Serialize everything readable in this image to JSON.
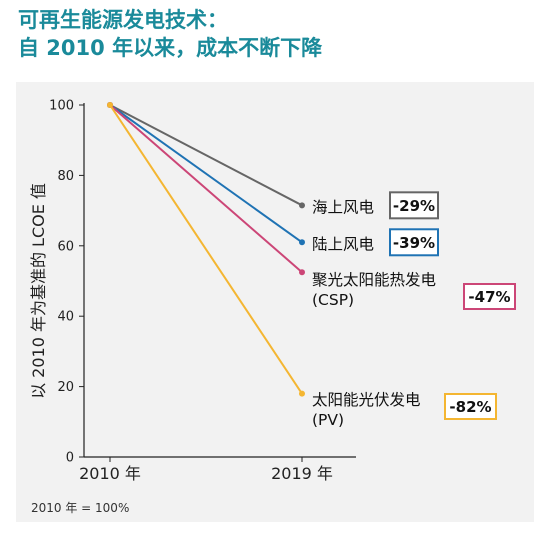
{
  "header": {
    "title_line1": "可再生能源发电技术：",
    "title_line2": "自 2010 年以来，成本不断下降"
  },
  "footnote": "2010 年 = 100%",
  "colors": {
    "title": "#1a8a9a",
    "panel_bg": "#f2f2f2"
  },
  "chart_data": {
    "type": "line",
    "title": "",
    "ylabel": "以 2010 年为基准的 LCOE 值",
    "xlabel": "",
    "categories": [
      "2010 年",
      "2019 年"
    ],
    "ylim": [
      0,
      100
    ],
    "yticks": [
      0,
      20,
      40,
      60,
      80,
      100
    ],
    "grid": false,
    "series": [
      {
        "name": "海上风电",
        "values": [
          100,
          71.5
        ],
        "change": "-29%",
        "color": "#666666"
      },
      {
        "name": "陆上风电",
        "values": [
          100,
          61
        ],
        "change": "-39%",
        "color": "#1f73b4"
      },
      {
        "name": "聚光太阳能热发电",
        "name_line2": "(CSP)",
        "values": [
          100,
          52.5
        ],
        "change": "-47%",
        "color": "#cc4677"
      },
      {
        "name": "太阳能光伏发电",
        "name_line2": "(PV)",
        "values": [
          100,
          18
        ],
        "change": "-82%",
        "color": "#f4b632"
      }
    ]
  }
}
